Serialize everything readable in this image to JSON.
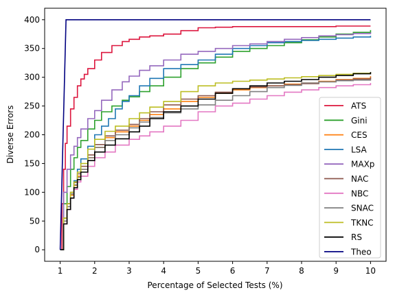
{
  "chart_data": {
    "type": "line",
    "xlabel": "Percentage of Selected Tests (%)",
    "ylabel": "Diverse Errors",
    "xlim": [
      0.55,
      10.45
    ],
    "ylim": [
      -20,
      420
    ],
    "xticks": [
      "1",
      "2",
      "3",
      "4",
      "5",
      "6",
      "7",
      "8",
      "9",
      "10"
    ],
    "yticks": [
      "0",
      "50",
      "100",
      "150",
      "200",
      "250",
      "300",
      "350",
      "400"
    ],
    "grid": false,
    "legend_position": "lower-right",
    "series": [
      {
        "name": "ATS",
        "color": "#dc143c",
        "x": [
          1.0,
          1.05,
          1.1,
          1.15,
          1.2,
          1.3,
          1.4,
          1.5,
          1.6,
          1.7,
          1.8,
          2.0,
          2.2,
          2.5,
          2.8,
          3.0,
          3.3,
          3.6,
          4.0,
          4.5,
          5.0,
          5.5,
          6.0,
          7.0,
          8.0,
          9.0,
          10.0
        ],
        "y": [
          0,
          80,
          140,
          185,
          215,
          245,
          265,
          285,
          297,
          305,
          315,
          330,
          343,
          355,
          362,
          366,
          370,
          372,
          375,
          381,
          386,
          387,
          388,
          388,
          388,
          389,
          389
        ]
      },
      {
        "name": "Gini",
        "color": "#2ca02c",
        "x": [
          1.0,
          1.1,
          1.2,
          1.3,
          1.4,
          1.5,
          1.6,
          1.8,
          2.0,
          2.2,
          2.5,
          2.8,
          3.0,
          3.3,
          3.6,
          4.0,
          4.5,
          5.0,
          5.5,
          6.0,
          6.5,
          7.0,
          7.5,
          8.0,
          8.5,
          9.0,
          9.5,
          10.0
        ],
        "y": [
          0,
          80,
          110,
          140,
          160,
          178,
          190,
          210,
          225,
          240,
          250,
          260,
          266,
          275,
          285,
          300,
          315,
          325,
          335,
          345,
          350,
          355,
          360,
          365,
          370,
          375,
          378,
          382
        ]
      },
      {
        "name": "CES",
        "color": "#ff7f0e",
        "x": [
          1.0,
          1.1,
          1.2,
          1.3,
          1.4,
          1.5,
          1.6,
          1.8,
          2.0,
          2.3,
          2.6,
          3.0,
          3.3,
          3.6,
          4.0,
          4.5,
          5.0,
          5.5,
          6.0,
          6.5,
          7.0,
          7.5,
          8.0,
          8.5,
          9.0,
          9.5,
          10.0
        ],
        "y": [
          0,
          50,
          75,
          95,
          112,
          128,
          140,
          160,
          178,
          195,
          205,
          215,
          225,
          235,
          245,
          258,
          265,
          272,
          278,
          282,
          285,
          288,
          290,
          293,
          296,
          298,
          302
        ]
      },
      {
        "name": "LSA",
        "color": "#1f77b4",
        "x": [
          1.0,
          1.1,
          1.2,
          1.3,
          1.4,
          1.5,
          1.6,
          1.8,
          2.0,
          2.2,
          2.4,
          2.6,
          2.8,
          3.0,
          3.3,
          3.6,
          4.0,
          4.5,
          5.0,
          5.5,
          6.0,
          6.5,
          7.0,
          7.5,
          8.0,
          8.5,
          9.0,
          9.5,
          10.0
        ],
        "y": [
          0,
          50,
          80,
          100,
          120,
          140,
          158,
          180,
          200,
          215,
          228,
          245,
          258,
          268,
          285,
          298,
          315,
          322,
          330,
          340,
          350,
          355,
          360,
          362,
          364,
          366,
          368,
          370,
          372
        ]
      },
      {
        "name": "MAXp",
        "color": "#9467bd",
        "x": [
          1.0,
          1.1,
          1.2,
          1.3,
          1.4,
          1.5,
          1.6,
          1.8,
          2.0,
          2.2,
          2.5,
          2.8,
          3.0,
          3.3,
          3.6,
          4.0,
          4.5,
          5.0,
          5.5,
          6.0,
          6.5,
          7.0,
          7.5,
          8.0,
          8.5,
          9.0,
          9.5,
          10.0
        ],
        "y": [
          0,
          100,
          140,
          165,
          180,
          195,
          210,
          228,
          242,
          260,
          278,
          292,
          302,
          312,
          320,
          330,
          340,
          345,
          350,
          355,
          358,
          362,
          366,
          369,
          372,
          374,
          376,
          378
        ]
      },
      {
        "name": "NAC",
        "color": "#8c564b",
        "x": [
          1.0,
          1.1,
          1.2,
          1.3,
          1.4,
          1.5,
          1.6,
          1.8,
          2.0,
          2.3,
          2.6,
          3.0,
          3.3,
          3.6,
          4.0,
          4.5,
          5.0,
          5.5,
          6.0,
          6.5,
          7.0,
          7.5,
          8.0,
          8.5,
          9.0,
          9.5,
          10.0
        ],
        "y": [
          0,
          55,
          80,
          100,
          117,
          132,
          145,
          165,
          183,
          198,
          208,
          218,
          228,
          240,
          252,
          262,
          268,
          274,
          280,
          283,
          285,
          287,
          289,
          292,
          295,
          297,
          300
        ]
      },
      {
        "name": "NBC",
        "color": "#e377c2",
        "x": [
          1.0,
          1.1,
          1.2,
          1.3,
          1.4,
          1.5,
          1.6,
          1.8,
          2.0,
          2.3,
          2.6,
          3.0,
          3.3,
          3.6,
          4.0,
          4.5,
          5.0,
          5.5,
          6.0,
          6.5,
          7.0,
          7.5,
          8.0,
          8.5,
          9.0,
          9.5,
          10.0
        ],
        "y": [
          0,
          45,
          70,
          90,
          105,
          118,
          128,
          145,
          160,
          170,
          182,
          192,
          198,
          205,
          215,
          225,
          240,
          250,
          255,
          262,
          268,
          274,
          278,
          282,
          285,
          287,
          290
        ]
      },
      {
        "name": "SNAC",
        "color": "#7f7f7f",
        "x": [
          1.0,
          1.1,
          1.2,
          1.3,
          1.4,
          1.5,
          1.6,
          1.8,
          2.0,
          2.3,
          2.6,
          3.0,
          3.3,
          3.6,
          4.0,
          4.5,
          5.0,
          5.5,
          6.0,
          6.5,
          7.0,
          7.5,
          8.0,
          8.5,
          9.0,
          9.5,
          10.0
        ],
        "y": [
          0,
          50,
          75,
          97,
          113,
          126,
          140,
          160,
          178,
          190,
          200,
          212,
          222,
          230,
          238,
          245,
          252,
          260,
          268,
          275,
          282,
          286,
          290,
          292,
          294,
          295,
          297
        ]
      },
      {
        "name": "TKNC",
        "color": "#bcbd22",
        "x": [
          1.0,
          1.1,
          1.2,
          1.3,
          1.4,
          1.5,
          1.6,
          1.8,
          2.0,
          2.3,
          2.6,
          3.0,
          3.3,
          3.6,
          4.0,
          4.5,
          5.0,
          5.5,
          6.0,
          6.5,
          7.0,
          7.5,
          8.0,
          8.5,
          9.0,
          9.5,
          10.0
        ],
        "y": [
          0,
          55,
          80,
          100,
          118,
          135,
          150,
          175,
          192,
          206,
          215,
          228,
          238,
          248,
          258,
          275,
          285,
          290,
          293,
          295,
          297,
          299,
          301,
          303,
          305,
          307,
          309
        ]
      },
      {
        "name": "RS",
        "color": "#000000",
        "x": [
          1.0,
          1.1,
          1.2,
          1.3,
          1.4,
          1.5,
          1.6,
          1.8,
          2.0,
          2.3,
          2.6,
          3.0,
          3.3,
          3.6,
          4.0,
          4.5,
          5.0,
          5.5,
          6.0,
          6.5,
          7.0,
          7.5,
          8.0,
          8.5,
          9.0,
          9.5,
          10.0
        ],
        "y": [
          0,
          45,
          70,
          90,
          108,
          122,
          135,
          155,
          170,
          182,
          193,
          205,
          215,
          228,
          240,
          250,
          262,
          272,
          280,
          285,
          290,
          293,
          296,
          300,
          303,
          306,
          309
        ]
      },
      {
        "name": "Theo",
        "color": "#000080",
        "x": [
          1.0,
          1.17,
          10.0
        ],
        "y": [
          0,
          400,
          400
        ]
      }
    ]
  }
}
